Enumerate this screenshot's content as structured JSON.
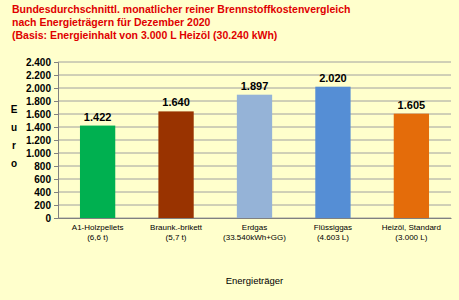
{
  "chart_data": {
    "type": "bar",
    "title": [
      "Bundesdurchschnittl. monatlicher reiner Brennstoffkostenvergleich",
      "nach Energieträgern  für Dezember 2020",
      "(Basis: Energieinhalt von  3.000 L Heizöl (30.240 kWh)"
    ],
    "categories": [
      "A1-Holzpellets\n(6,6 t)",
      "Braunk.-brikett\n(5,7 t)",
      "Erdgas\n(33.540kWh+GG)",
      "Flüssiggas\n(4.603 L)",
      "Heizöl, Standard\n(3.000 L)"
    ],
    "values": [
      1422,
      1640,
      1897,
      2020,
      1605
    ],
    "value_labels": [
      "1.422",
      "1.640",
      "1.897",
      "2.020",
      "1.605"
    ],
    "colors": [
      "#00b050",
      "#993300",
      "#95b3d7",
      "#558ed5",
      "#e46c0a"
    ],
    "x_label": "Energieträger",
    "y_label": "Euro",
    "ylim": [
      0,
      2400
    ],
    "yticks": [
      0,
      200,
      400,
      600,
      800,
      {
        "value": 1000,
        "label": "1.000"
      },
      {
        "value": 1200,
        "label": "1.200"
      },
      {
        "value": 1400,
        "label": "1.400"
      },
      {
        "value": 1600,
        "label": "1.600"
      },
      {
        "value": 1800,
        "label": "1.800"
      },
      {
        "value": 2000,
        "label": "2.000"
      },
      {
        "value": 2200,
        "label": "2.200"
      },
      {
        "value": 2400,
        "label": "2.400"
      }
    ],
    "grid": true,
    "data_labels": true
  }
}
